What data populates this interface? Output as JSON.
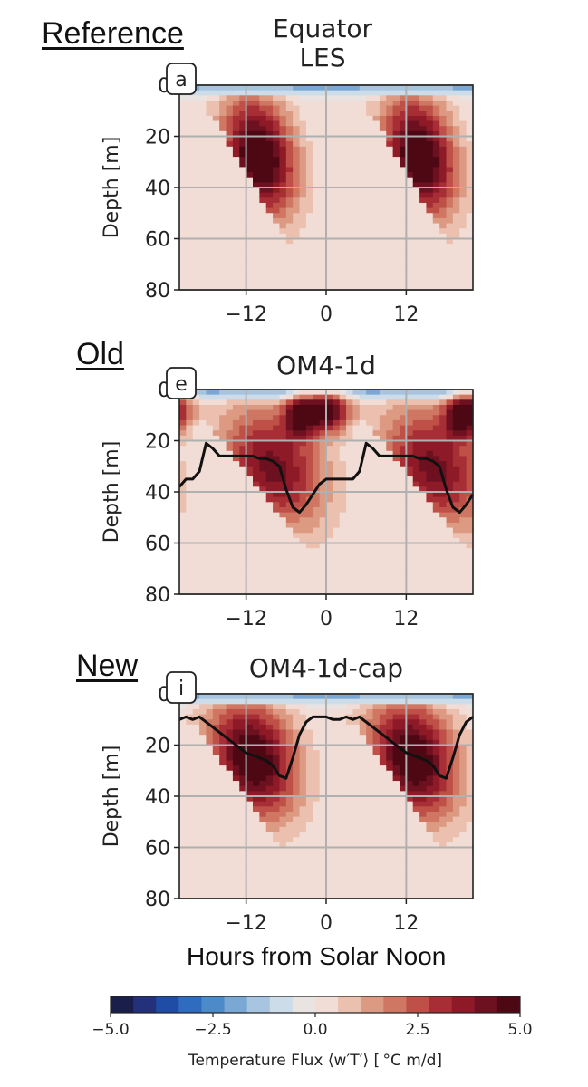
{
  "row_labels": {
    "reference": "Reference",
    "old": "Old",
    "new": "New"
  },
  "x_axis_label": "Hours from Solar Noon",
  "colorbar": {
    "label": "Temperature Flux ⟨w′T′⟩  [ °C m/d]",
    "ticks": [
      "−5.0",
      "−2.5",
      "0.0",
      "2.5",
      "5.0"
    ],
    "range": [
      -5,
      5
    ],
    "colors": [
      "#1a1e4a",
      "#23317a",
      "#1f4da6",
      "#2f6cbf",
      "#4d8ac9",
      "#7aa8d4",
      "#a7c5e0",
      "#cddce9",
      "#e9e3e2",
      "#f1ddd5",
      "#ebc0af",
      "#dd9a83",
      "#cf7763",
      "#be5047",
      "#a72e34",
      "#8e1a28",
      "#6d1020",
      "#4d0814"
    ]
  },
  "chart_data": [
    {
      "type": "heatmap",
      "id": "a",
      "title": "Equator\nLES",
      "panel_letter": "a",
      "xlabel": "",
      "ylabel": "Depth [m]",
      "xlim": [
        -22,
        22
      ],
      "ylim": [
        80,
        0
      ],
      "xticks": [
        -12,
        0,
        12
      ],
      "xtick_labels": [
        "−12",
        "0",
        "12"
      ],
      "yticks": [
        0,
        20,
        40,
        60,
        80
      ],
      "ytick_labels": [
        "0",
        "20",
        "40",
        "60",
        "80"
      ],
      "grid": true,
      "period_hours": 24,
      "flux_max": 5.0,
      "pattern": {
        "upper_flux": -2.2,
        "plume_center_hour": -10,
        "plume_start_hour": -17,
        "plume_end_hour": -3,
        "plume_peak_depth": 35,
        "plume_bottom_depth": 70,
        "plume_peak_flux": 4.8
      },
      "mld_line": null
    },
    {
      "type": "heatmap",
      "id": "e",
      "title": "OM4-1d",
      "panel_letter": "e",
      "xlabel": "",
      "ylabel": "Depth [m]",
      "xlim": [
        -22,
        22
      ],
      "ylim": [
        80,
        0
      ],
      "xticks": [
        -12,
        0,
        12
      ],
      "xtick_labels": [
        "−12",
        "0",
        "12"
      ],
      "yticks": [
        0,
        20,
        40,
        60,
        80
      ],
      "ytick_labels": [
        "0",
        "20",
        "40",
        "60",
        "80"
      ],
      "grid": true,
      "period_hours": 24,
      "flux_max": 5.0,
      "pattern": {
        "upper_flux": -2.5,
        "plume_center_hour": -8,
        "plume_start_hour": -18,
        "plume_end_hour": 2,
        "plume_peak_depth": 38,
        "plume_bottom_depth": 75,
        "plume_peak_flux": 3.6,
        "surface_blob_hour": 0,
        "surface_blob_depth": 8,
        "surface_blob_flux": 5.0
      },
      "mld_line": {
        "x": [
          -22,
          -21,
          -20,
          -19,
          -18,
          -17,
          -16,
          -15,
          -14,
          -13,
          -12,
          -11,
          -10,
          -9,
          -8,
          -7,
          -6,
          -5,
          -4,
          -3,
          -2,
          -1,
          0,
          1,
          2
        ],
        "y": [
          38,
          35,
          35,
          32,
          21,
          23,
          26,
          26,
          26,
          26,
          26,
          26,
          27,
          27,
          28,
          30,
          39,
          46,
          48,
          45,
          41,
          37,
          35,
          35,
          35
        ]
      }
    },
    {
      "type": "heatmap",
      "id": "i",
      "title": "OM4-1d-cap",
      "panel_letter": "i",
      "xlabel": "Hours from Solar Noon",
      "ylabel": "Depth [m]",
      "xlim": [
        -22,
        22
      ],
      "ylim": [
        80,
        0
      ],
      "xticks": [
        -12,
        0,
        12
      ],
      "xtick_labels": [
        "−12",
        "0",
        "12"
      ],
      "yticks": [
        0,
        20,
        40,
        60,
        80
      ],
      "ytick_labels": [
        "0",
        "20",
        "40",
        "60",
        "80"
      ],
      "grid": true,
      "period_hours": 24,
      "flux_max": 5.0,
      "pattern": {
        "upper_flux": -2.2,
        "plume_center_hour": -11,
        "plume_start_hour": -20,
        "plume_end_hour": -3,
        "plume_peak_depth": 32,
        "plume_bottom_depth": 72,
        "plume_peak_flux": 4.6
      },
      "mld_line": {
        "x": [
          -22,
          -21,
          -20,
          -19,
          -18,
          -17,
          -16,
          -15,
          -14,
          -13,
          -12,
          -11,
          -10,
          -9,
          -8,
          -7,
          -6,
          -5,
          -4,
          -3,
          -2,
          -1,
          0,
          1,
          2
        ],
        "y": [
          10,
          9,
          10,
          9,
          11,
          13,
          15,
          17,
          19,
          21,
          23,
          24,
          25,
          26,
          28,
          32,
          33,
          25,
          16,
          11,
          9,
          9,
          9,
          10,
          10
        ]
      }
    }
  ]
}
